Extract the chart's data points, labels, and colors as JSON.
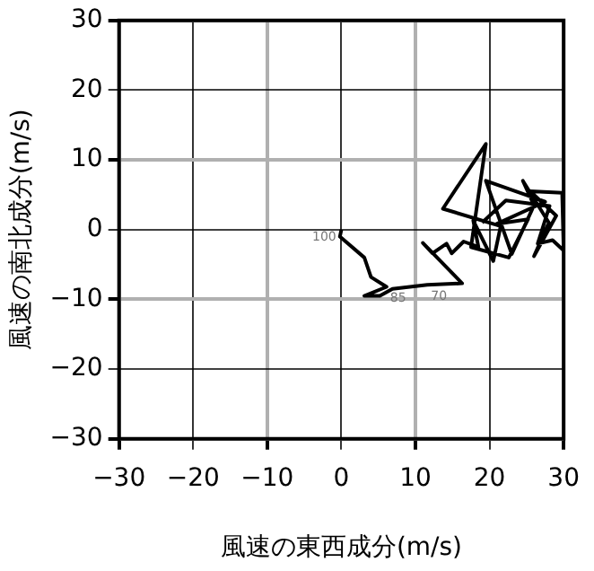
{
  "chart_data": {
    "type": "line",
    "xlabel": "風速の東西成分(m/s)",
    "ylabel": "風速の南北成分(m/s)",
    "xlim": [
      -30,
      30
    ],
    "ylim": [
      -30,
      30
    ],
    "xticks": [
      -30,
      -20,
      -10,
      0,
      10,
      20,
      30
    ],
    "yticks": [
      -30,
      -20,
      -10,
      0,
      10,
      20,
      30
    ],
    "grid": true,
    "marker": "none",
    "line_style": "solid",
    "series": [
      {
        "color": "#000000",
        "x": [
          0,
          -0.2,
          3.1,
          4,
          6.1,
          3.1,
          5.2,
          6.9,
          11.6,
          16.3,
          11,
          12.3,
          14.2,
          14.9,
          16.5,
          18.5,
          17.8,
          20.5,
          21.5,
          13.7,
          19.5,
          17.5,
          22.6,
          25.2,
          20.9,
          27.5,
          19.5,
          23,
          26,
          24.5,
          28,
          26,
          29,
          25.5,
          29.8,
          30,
          28.5,
          26.5,
          28.1,
          22.2,
          19
        ],
        "values": [
          0,
          -1,
          -4,
          -6.8,
          -8.2,
          -9.5,
          -9.5,
          -8.5,
          -7.9,
          -7.7,
          -1.9,
          -3.4,
          -2,
          -3.4,
          -1.7,
          -2.5,
          1.3,
          -4.5,
          0.5,
          3,
          12.3,
          -2.5,
          -4,
          1.5,
          0.8,
          4,
          7,
          -3.5,
          3.5,
          7,
          1,
          -3.8,
          2,
          5.5,
          5.3,
          -3,
          -1.5,
          -2,
          3.4,
          4.2,
          1
        ]
      }
    ],
    "annotations": [
      {
        "text": "100",
        "x": -0.2,
        "y": -1
      },
      {
        "text": "85",
        "x": 6.1,
        "y": -8.2
      },
      {
        "text": "70",
        "x": 11.6,
        "y": -7.9
      }
    ]
  }
}
